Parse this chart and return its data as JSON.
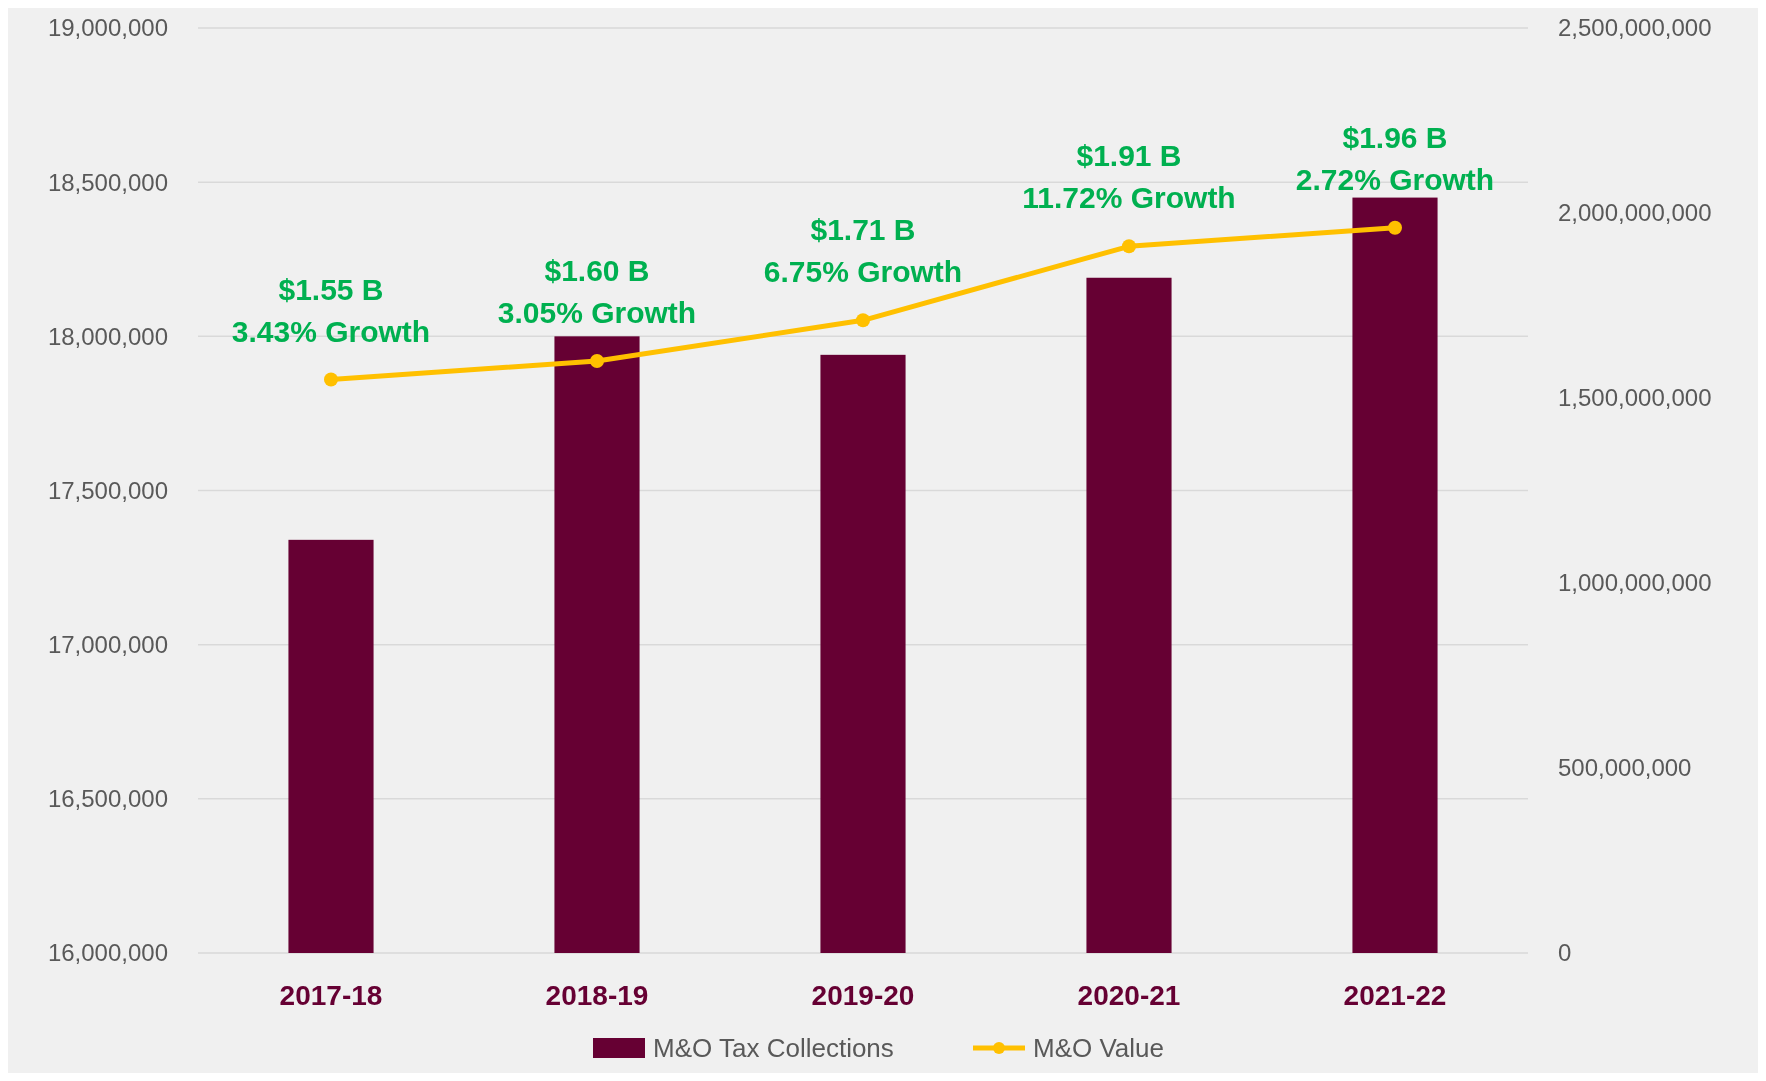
{
  "chart_data": {
    "type": "bar",
    "categories": [
      "2017-18",
      "2018-19",
      "2019-20",
      "2020-21",
      "2021-22"
    ],
    "series": [
      {
        "name": "M&O Tax Collections",
        "color": "#660033",
        "values": [
          17340000,
          18000000,
          17940000,
          18190000,
          18450000
        ]
      },
      {
        "name": "M&O Value",
        "type": "line",
        "axis": "y2",
        "color": "#ffc000",
        "marker": "circle",
        "values": [
          1550000000,
          1600000000,
          1710000000,
          1910000000,
          1960000000
        ],
        "value_labels": [
          "$1.55 B",
          "$1.60 B",
          "$1.71 B",
          "$1.91 B",
          "$1.96 B"
        ]
      }
    ],
    "annotations": [
      "3.43% Growth",
      "3.05% Growth",
      "6.75% Growth",
      "11.72% Growth",
      "2.72% Growth"
    ],
    "ylim": [
      16000000,
      19000000
    ],
    "yticks": [
      {
        "value": 16000000,
        "label": "16,000,000"
      },
      {
        "value": 16500000,
        "label": "16,500,000"
      },
      {
        "value": 17000000,
        "label": "17,000,000"
      },
      {
        "value": 17500000,
        "label": "17,500,000"
      },
      {
        "value": 18000000,
        "label": "18,000,000"
      },
      {
        "value": 18500000,
        "label": "18,500,000"
      },
      {
        "value": 19000000,
        "label": "19,000,000"
      }
    ],
    "y2lim": [
      0,
      2500000000
    ],
    "y2ticks": [
      0,
      {
        "value": 500000000,
        "label": "500,000,000"
      },
      {
        "value": 1000000000,
        "label": "1,000,000,000"
      },
      {
        "value": 1500000000,
        "label": "1,500,000,000"
      },
      {
        "value": 2000000000,
        "label": "2,000,000,000"
      },
      {
        "value": 2500000000,
        "label": "2,500,000,000"
      }
    ],
    "grid": "y",
    "legend": "bottom"
  }
}
